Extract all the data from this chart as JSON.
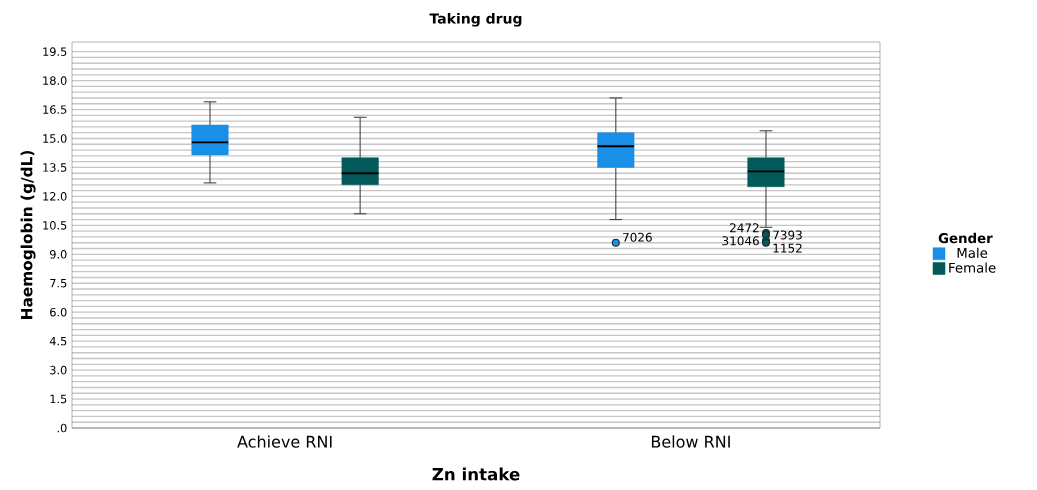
{
  "chart_data": {
    "type": "box",
    "title": "Taking drug",
    "xlabel": "Zn intake",
    "ylabel": "Haemoglobin (g/dL)",
    "legend_title": "Gender",
    "legend": "right",
    "grid": "y",
    "categories": [
      "Achieve RNI",
      "Below RNI"
    ],
    "ylim": [
      0,
      20
    ],
    "yticks": [
      {
        "value": 0,
        "label": ".0"
      },
      {
        "value": 1.5,
        "label": "1.5"
      },
      {
        "value": 3,
        "label": "3.0"
      },
      {
        "value": 4.5,
        "label": "4.5"
      },
      {
        "value": 6,
        "label": "6.0"
      },
      {
        "value": 7.5,
        "label": "7.5"
      },
      {
        "value": 9,
        "label": "9.0"
      },
      {
        "value": 10.5,
        "label": "10.5"
      },
      {
        "value": 12,
        "label": "12.0"
      },
      {
        "value": 13.5,
        "label": "13.5"
      },
      {
        "value": 15,
        "label": "15.0"
      },
      {
        "value": 16.5,
        "label": "16.5"
      },
      {
        "value": 18,
        "label": "18.0"
      },
      {
        "value": 19.5,
        "label": "19.5"
      }
    ],
    "series": [
      {
        "name": "Male",
        "color": "#1a8fe6",
        "boxes": [
          {
            "low": 12.7,
            "q1": 14.15,
            "median": 14.8,
            "q3": 15.7,
            "high": 16.9
          },
          {
            "low": 10.8,
            "q1": 13.5,
            "median": 14.6,
            "q3": 15.3,
            "high": 17.1,
            "outliers": [
              9.6
            ]
          }
        ]
      },
      {
        "name": "Female",
        "color": "#035a5a",
        "boxes": [
          {
            "low": 11.1,
            "q1": 12.6,
            "median": 13.2,
            "q3": 14.0,
            "high": 16.1
          },
          {
            "low": 10.4,
            "q1": 12.5,
            "median": 13.3,
            "q3": 14.0,
            "high": 15.4,
            "outliers": [
              10.1,
              10.0,
              9.7,
              9.6
            ]
          }
        ]
      }
    ],
    "annotations": [
      "7026",
      "2472",
      "7393",
      "31046",
      "1152"
    ]
  }
}
